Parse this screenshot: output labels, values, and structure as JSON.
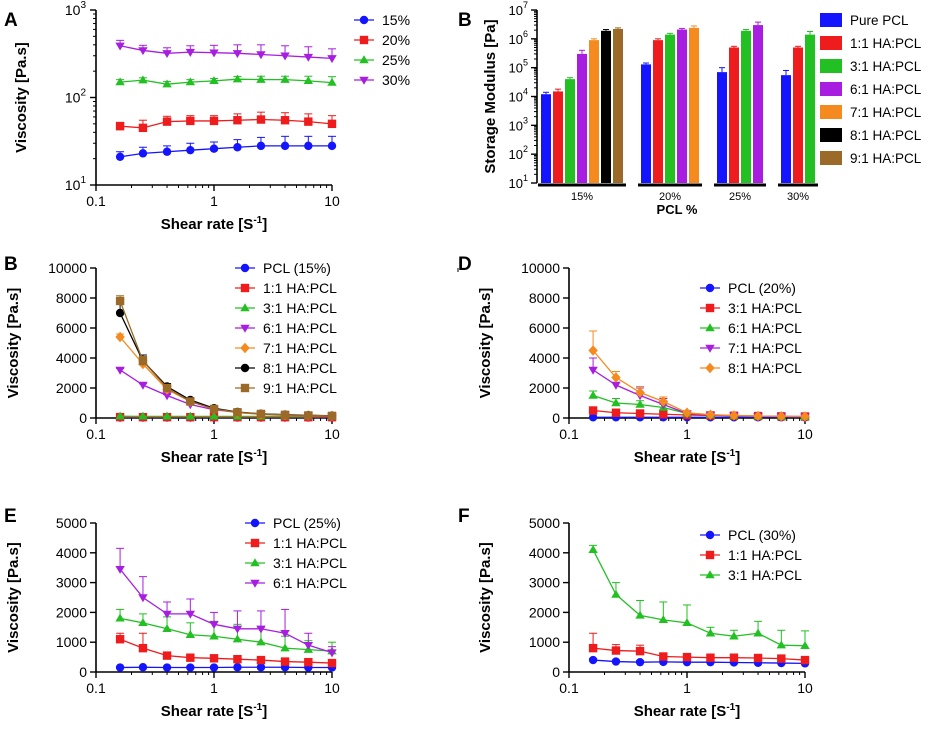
{
  "figure": {
    "colors": {
      "blue": "#1414ff",
      "red": "#ee1c1c",
      "green": "#22c022",
      "purple": "#a81ee0",
      "orange": "#f58a1e",
      "black": "#000000",
      "brown": "#9b6a28"
    }
  },
  "chart_data": [
    {
      "id": "A",
      "panel_label": "A",
      "type": "line",
      "xscale": "log",
      "yscale": "log",
      "xlim": [
        0.1,
        10
      ],
      "ylim": [
        10,
        1000
      ],
      "xticks": [
        0.1,
        1,
        10
      ],
      "xtick_labels": [
        "0.1",
        "1",
        "10"
      ],
      "yticks": [
        10,
        100,
        1000
      ],
      "ytick_labels": [
        "10",
        "10",
        "10"
      ],
      "ytick_exponents": [
        "1",
        "2",
        "3"
      ],
      "xlabel": "Shear rate [S",
      "xlabel_sup": "-1",
      "xlabel_end": "]",
      "ylabel": "Viscosity [Pa.s]",
      "legend_position": "top-right",
      "x": [
        0.16,
        0.25,
        0.4,
        0.63,
        1.0,
        1.58,
        2.5,
        4.0,
        6.3,
        10.0
      ],
      "series": [
        {
          "name": "15%",
          "color": "blue",
          "marker": "circle",
          "values": [
            21,
            23,
            24,
            25,
            26,
            27,
            28,
            28,
            28,
            28
          ],
          "errors": [
            3,
            4,
            4,
            5,
            5,
            6,
            7,
            8,
            8,
            8
          ]
        },
        {
          "name": "20%",
          "color": "red",
          "marker": "square",
          "values": [
            47,
            45,
            53,
            54,
            54,
            55,
            56,
            55,
            53,
            50
          ],
          "errors": [
            5,
            10,
            8,
            8,
            8,
            10,
            12,
            12,
            12,
            12
          ]
        },
        {
          "name": "25%",
          "color": "green",
          "marker": "triangle",
          "values": [
            150,
            158,
            142,
            150,
            155,
            162,
            160,
            160,
            155,
            148
          ],
          "errors": [
            10,
            10,
            10,
            10,
            10,
            12,
            15,
            15,
            20,
            25
          ]
        },
        {
          "name": "30%",
          "color": "purple",
          "marker": "triangle-down",
          "values": [
            390,
            345,
            320,
            330,
            325,
            320,
            310,
            300,
            290,
            280
          ],
          "errors": [
            60,
            50,
            50,
            60,
            70,
            80,
            90,
            90,
            90,
            80
          ]
        }
      ]
    },
    {
      "id": "B-bar",
      "panel_label": "B",
      "type": "bar",
      "yscale": "log",
      "ylim": [
        10,
        10000000
      ],
      "yticks": [
        10,
        100,
        1000,
        10000,
        100000,
        1000000,
        10000000
      ],
      "ytick_labels": [
        "10",
        "10",
        "10",
        "10",
        "10",
        "10",
        "10"
      ],
      "ytick_exponents": [
        "1",
        "2",
        "3",
        "4",
        "5",
        "6",
        "7"
      ],
      "ylabel": "Storage Modulus  [Pa]",
      "xlabel": "PCL %",
      "groups": [
        "15%",
        "20%",
        "25%",
        "30%"
      ],
      "legend_position": "right",
      "series": [
        {
          "name": "Pure PCL",
          "color": "blue",
          "values": [
            12000,
            130000,
            70000,
            55000
          ],
          "errors": [
            2000,
            15000,
            30000,
            25000
          ]
        },
        {
          "name": "1:1 HA:PCL",
          "color": "red",
          "values": [
            15000,
            900000,
            500000,
            500000
          ],
          "errors": [
            3000,
            100000,
            50000,
            50000
          ]
        },
        {
          "name": "3:1 HA:PCL",
          "color": "green",
          "values": [
            40000,
            1400000,
            1900000,
            1400000
          ],
          "errors": [
            5000,
            150000,
            200000,
            400000
          ]
        },
        {
          "name": "6:1 HA:PCL",
          "color": "purple",
          "values": [
            300000,
            2100000,
            3000000,
            null
          ],
          "errors": [
            100000,
            200000,
            800000,
            null
          ]
        },
        {
          "name": "7:1 HA:PCL",
          "color": "orange",
          "values": [
            900000,
            2400000,
            null,
            null
          ],
          "errors": [
            100000,
            400000,
            null,
            null
          ]
        },
        {
          "name": "8:1 HA:PCL",
          "color": "black",
          "values": [
            1900000,
            null,
            null,
            null
          ],
          "errors": [
            200000,
            null,
            null,
            null
          ]
        },
        {
          "name": "9:1 HA:PCL",
          "color": "brown",
          "values": [
            2200000,
            null,
            null,
            null
          ],
          "errors": [
            200000,
            null,
            null,
            null
          ]
        }
      ]
    },
    {
      "id": "B",
      "panel_label": "B",
      "type": "line",
      "xscale": "log",
      "xlim": [
        0.1,
        10
      ],
      "ylim": [
        0,
        10000
      ],
      "xticks": [
        0.1,
        1,
        10
      ],
      "xtick_labels": [
        "0.1",
        "1",
        "10"
      ],
      "yticks": [
        0,
        2000,
        4000,
        6000,
        8000,
        10000
      ],
      "ytick_labels": [
        "0",
        "2000",
        "4000",
        "6000",
        "8000",
        "10000"
      ],
      "xlabel": "Shear rate [S",
      "xlabel_sup": "-1",
      "xlabel_end": "]",
      "ylabel": "Viscosity [Pa.s]",
      "legend_position": "top-right",
      "x": [
        0.16,
        0.25,
        0.4,
        0.63,
        1.0,
        1.58,
        2.5,
        4.0,
        6.3,
        10.0
      ],
      "series": [
        {
          "name": "PCL (15%)",
          "color": "blue",
          "marker": "circle",
          "values": [
            30,
            30,
            30,
            30,
            30,
            30,
            30,
            30,
            30,
            30
          ],
          "errors": [
            0,
            0,
            0,
            0,
            0,
            0,
            0,
            0,
            0,
            0
          ]
        },
        {
          "name": "1:1 HA:PCL",
          "color": "red",
          "marker": "square",
          "values": [
            60,
            55,
            55,
            55,
            55,
            55,
            55,
            55,
            55,
            55
          ],
          "errors": [
            0,
            0,
            0,
            0,
            0,
            0,
            0,
            0,
            0,
            0
          ]
        },
        {
          "name": "3:1 HA:PCL",
          "color": "green",
          "marker": "triangle",
          "values": [
            120,
            110,
            110,
            110,
            110,
            110,
            110,
            110,
            110,
            110
          ],
          "errors": [
            0,
            0,
            0,
            0,
            0,
            0,
            0,
            0,
            0,
            0
          ]
        },
        {
          "name": "6:1 HA:PCL",
          "color": "purple",
          "marker": "triangle-down",
          "values": [
            3200,
            2200,
            1500,
            900,
            550,
            380,
            250,
            200,
            160,
            130
          ],
          "errors": [
            100,
            80,
            60,
            50,
            40,
            30,
            20,
            20,
            20,
            20
          ]
        },
        {
          "name": "7:1 HA:PCL",
          "color": "orange",
          "marker": "diamond",
          "values": [
            5400,
            3600,
            1900,
            1100,
            600,
            350,
            250,
            200,
            170,
            140
          ],
          "errors": [
            200,
            200,
            150,
            100,
            50,
            30,
            20,
            20,
            20,
            20
          ]
        },
        {
          "name": "8:1 HA:PCL",
          "color": "black",
          "marker": "circle",
          "values": [
            7000,
            3800,
            2100,
            1200,
            650,
            400,
            280,
            220,
            180,
            150
          ],
          "errors": [
            900,
            400,
            200,
            150,
            80,
            40,
            30,
            20,
            20,
            20
          ]
        },
        {
          "name": "9:1 HA:PCL",
          "color": "brown",
          "marker": "square",
          "values": [
            7800,
            3800,
            2000,
            1100,
            600,
            380,
            270,
            210,
            170,
            140
          ],
          "errors": [
            350,
            300,
            200,
            100,
            60,
            40,
            30,
            20,
            20,
            20
          ]
        }
      ]
    },
    {
      "id": "D",
      "panel_label": "D",
      "type": "line",
      "xscale": "log",
      "xlim": [
        0.1,
        10
      ],
      "ylim": [
        0,
        10000
      ],
      "xticks": [
        0.1,
        1,
        10
      ],
      "xtick_labels": [
        "0.1",
        "1",
        "10"
      ],
      "yticks": [
        0,
        2000,
        4000,
        6000,
        8000,
        10000
      ],
      "ytick_labels": [
        "0",
        "2000",
        "4000",
        "6000",
        "8000",
        "10000"
      ],
      "xlabel": "Shear rate [S",
      "xlabel_sup": "-1",
      "xlabel_end": "]",
      "ylabel": "Viscosity [Pa.s]",
      "legend_position": "top-right",
      "x": [
        0.16,
        0.25,
        0.4,
        0.63,
        1.0,
        1.58,
        2.5,
        4.0,
        6.3,
        10.0
      ],
      "series": [
        {
          "name": "PCL (20%)",
          "color": "blue",
          "marker": "circle",
          "values": [
            50,
            50,
            50,
            50,
            50,
            50,
            50,
            50,
            50,
            50
          ],
          "errors": [
            0,
            0,
            0,
            0,
            0,
            0,
            0,
            0,
            0,
            0
          ]
        },
        {
          "name": "3:1 HA:PCL",
          "color": "red",
          "marker": "square",
          "values": [
            500,
            350,
            300,
            250,
            200,
            170,
            150,
            130,
            110,
            100
          ],
          "errors": [
            150,
            100,
            80,
            60,
            40,
            30,
            20,
            20,
            20,
            20
          ]
        },
        {
          "name": "6:1 HA:PCL",
          "color": "green",
          "marker": "triangle",
          "values": [
            1500,
            1000,
            900,
            700,
            300,
            200,
            150,
            120,
            100,
            90
          ],
          "errors": [
            300,
            300,
            250,
            200,
            50,
            30,
            20,
            20,
            20,
            20
          ]
        },
        {
          "name": "7:1 HA:PCL",
          "color": "purple",
          "marker": "triangle-down",
          "values": [
            3200,
            2200,
            1500,
            900,
            300,
            200,
            150,
            120,
            100,
            90
          ],
          "errors": [
            800,
            500,
            500,
            400,
            50,
            30,
            20,
            20,
            20,
            20
          ]
        },
        {
          "name": "8:1 HA:PCL",
          "color": "orange",
          "marker": "diamond",
          "values": [
            4500,
            2700,
            1700,
            1100,
            350,
            220,
            170,
            130,
            110,
            100
          ],
          "errors": [
            1300,
            400,
            400,
            300,
            60,
            30,
            20,
            20,
            20,
            20
          ]
        }
      ]
    },
    {
      "id": "E",
      "panel_label": "E",
      "type": "line",
      "xscale": "log",
      "xlim": [
        0.1,
        10
      ],
      "ylim": [
        0,
        5000
      ],
      "xticks": [
        0.1,
        1,
        10
      ],
      "xtick_labels": [
        "0.1",
        "1",
        "10"
      ],
      "yticks": [
        0,
        1000,
        2000,
        3000,
        4000,
        5000
      ],
      "ytick_labels": [
        "0",
        "1000",
        "2000",
        "3000",
        "4000",
        "5000"
      ],
      "xlabel": "Shear rate [S",
      "xlabel_sup": "-1",
      "xlabel_end": "]",
      "ylabel": "Viscosity [Pa.s]",
      "legend_position": "top-right",
      "x": [
        0.16,
        0.25,
        0.4,
        0.63,
        1.0,
        1.58,
        2.5,
        4.0,
        6.3,
        10.0
      ],
      "series": [
        {
          "name": "PCL (25%)",
          "color": "blue",
          "marker": "circle",
          "values": [
            150,
            160,
            150,
            150,
            150,
            160,
            160,
            160,
            150,
            150
          ],
          "errors": [
            20,
            20,
            20,
            20,
            20,
            20,
            20,
            20,
            20,
            20
          ]
        },
        {
          "name": "1:1 HA:PCL",
          "color": "red",
          "marker": "square",
          "values": [
            1100,
            800,
            550,
            480,
            460,
            430,
            400,
            350,
            330,
            300
          ],
          "errors": [
            200,
            500,
            100,
            80,
            80,
            80,
            80,
            80,
            80,
            80
          ]
        },
        {
          "name": "3:1 HA:PCL",
          "color": "green",
          "marker": "triangle",
          "values": [
            1800,
            1650,
            1450,
            1250,
            1200,
            1100,
            1000,
            800,
            750,
            700
          ],
          "errors": [
            300,
            300,
            400,
            400,
            500,
            500,
            500,
            400,
            300,
            300
          ]
        },
        {
          "name": "6:1 HA:PCL",
          "color": "purple",
          "marker": "triangle-down",
          "values": [
            3450,
            2500,
            1950,
            1950,
            1600,
            1450,
            1450,
            1300,
            900,
            650
          ],
          "errors": [
            700,
            700,
            400,
            500,
            400,
            600,
            600,
            800,
            400,
            200
          ]
        }
      ]
    },
    {
      "id": "F",
      "panel_label": "F",
      "type": "line",
      "xscale": "log",
      "xlim": [
        0.1,
        10
      ],
      "ylim": [
        0,
        5000
      ],
      "xticks": [
        0.1,
        1,
        10
      ],
      "xtick_labels": [
        "0.1",
        "1",
        "10"
      ],
      "yticks": [
        0,
        1000,
        2000,
        3000,
        4000,
        5000
      ],
      "ytick_labels": [
        "0",
        "1000",
        "2000",
        "3000",
        "4000",
        "5000"
      ],
      "xlabel": "Shear rate [S",
      "xlabel_sup": "-1",
      "xlabel_end": "]",
      "ylabel": "Viscosity [Pa.s]",
      "legend_position": "top-right",
      "x": [
        0.16,
        0.25,
        0.4,
        0.63,
        1.0,
        1.58,
        2.5,
        4.0,
        6.3,
        10.0
      ],
      "series": [
        {
          "name": "PCL (30%)",
          "color": "blue",
          "marker": "circle",
          "values": [
            400,
            350,
            330,
            340,
            330,
            330,
            320,
            310,
            300,
            290
          ],
          "errors": [
            50,
            50,
            50,
            50,
            50,
            50,
            50,
            50,
            50,
            50
          ]
        },
        {
          "name": "1:1 HA:PCL",
          "color": "red",
          "marker": "square",
          "values": [
            800,
            720,
            700,
            520,
            500,
            480,
            480,
            470,
            450,
            400
          ],
          "errors": [
            500,
            200,
            200,
            100,
            100,
            80,
            80,
            80,
            80,
            80
          ]
        },
        {
          "name": "3:1 HA:PCL",
          "color": "green",
          "marker": "triangle",
          "values": [
            4100,
            2600,
            1900,
            1750,
            1650,
            1300,
            1200,
            1300,
            900,
            880
          ],
          "errors": [
            150,
            400,
            500,
            600,
            600,
            200,
            200,
            400,
            500,
            500
          ]
        }
      ]
    }
  ]
}
